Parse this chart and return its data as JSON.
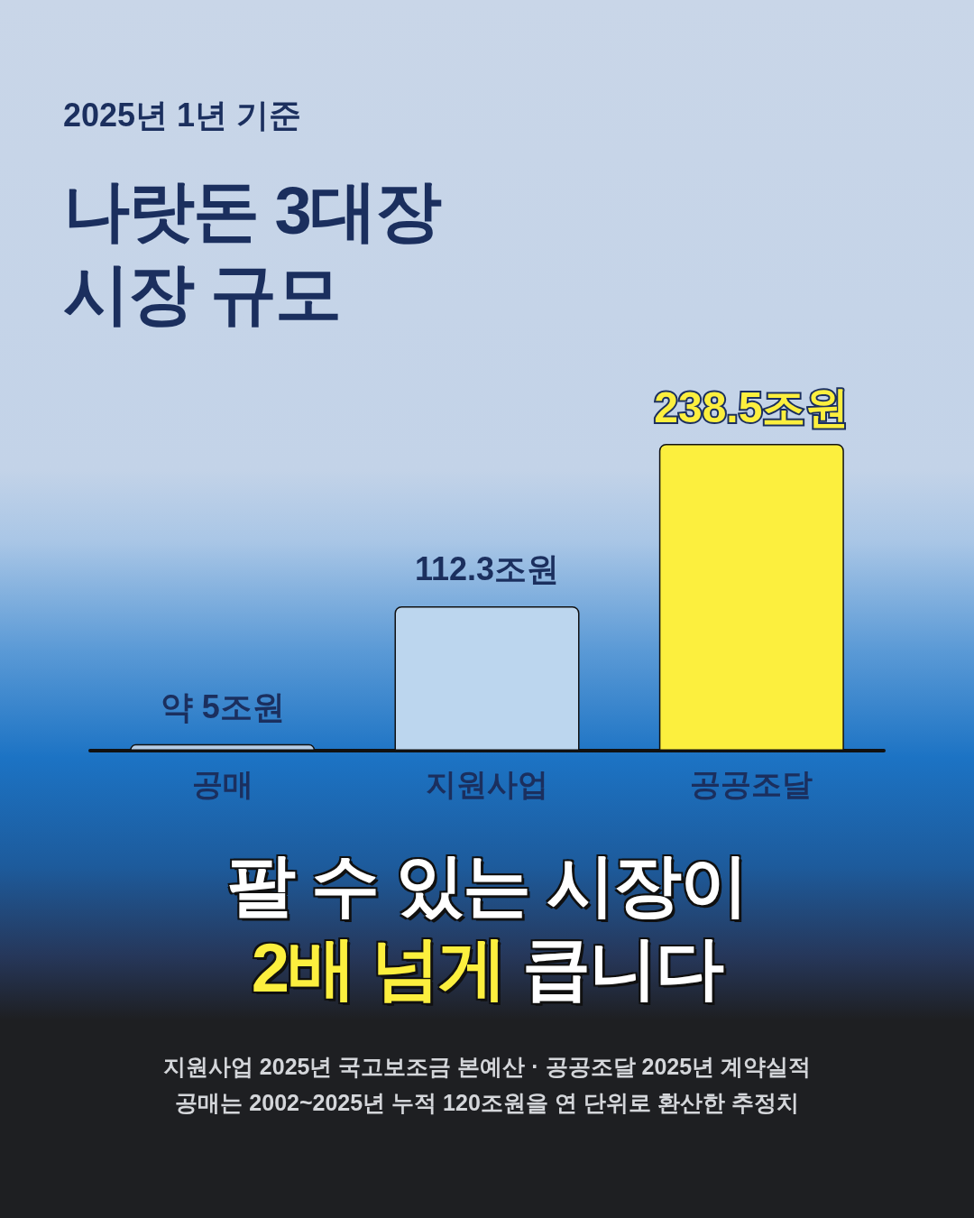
{
  "chart_data": {
    "type": "bar",
    "title": "나랏돈 3대장 시장 규모",
    "subtitle": "2025년 1년 기준",
    "categories": [
      "공매",
      "지원사업",
      "공공조달"
    ],
    "values": [
      5,
      112.3,
      238.5
    ],
    "value_labels": [
      "약 5조원",
      "112.3조원",
      "238.5조원"
    ],
    "colors": [
      "#b6cde6",
      "#bcd6ee",
      "#fcef3e"
    ],
    "annotations": [
      "팔 수 있는 시장이",
      "2배 넘게",
      "큽니다",
      "지원사업 2025년 국고보조금 본예산 · 공공조달 2025년 계약실적",
      "공매는 2002~2025년 누적 120조원을 연 단위로 환산한 추정치"
    ]
  }
}
